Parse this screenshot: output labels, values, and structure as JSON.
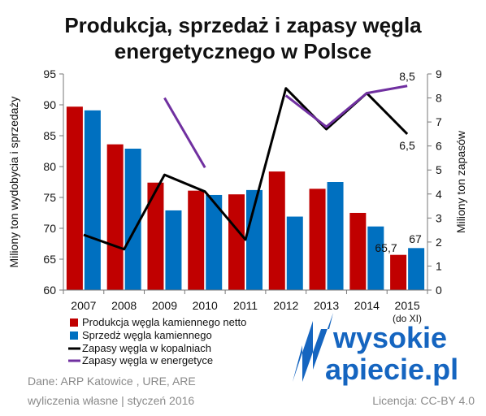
{
  "chart_data": {
    "type": "bar",
    "title": [
      "Produkcja, sprzedaż i zapasy węgla",
      "energetycznego w Polsce"
    ],
    "ylabel": "Miliony ton wydobycia i sprzedaży",
    "ylabel_right": "Miliony ton zapasów",
    "ylim": [
      60,
      95
    ],
    "ylim_right": [
      0,
      9
    ],
    "yticks": [
      60,
      65,
      70,
      75,
      80,
      85,
      90,
      95
    ],
    "yticks_right": [
      0,
      1,
      2,
      3,
      4,
      5,
      6,
      7,
      8,
      9
    ],
    "categories": [
      "2007",
      "2008",
      "2009",
      "2010",
      "2011",
      "2012",
      "2013",
      "2014",
      "2015"
    ],
    "category_note": "(do XI)",
    "grid": false,
    "legend": "bottom-left",
    "series": [
      {
        "name": "Produkcja węgla kamiennego netto",
        "type": "bar",
        "axis": "left",
        "color": "#c00000",
        "values": [
          89.7,
          83.6,
          77.4,
          76.1,
          75.5,
          79.2,
          76.4,
          72.5,
          65.7
        ]
      },
      {
        "name": "Sprzedż węgla kamiennego",
        "type": "bar",
        "axis": "left",
        "color": "#0070c0",
        "values": [
          89.1,
          82.9,
          72.9,
          75.4,
          76.2,
          71.9,
          77.5,
          70.3,
          66.8
        ]
      },
      {
        "name": "Zapasy węgla w kopalniach",
        "type": "line",
        "axis": "right",
        "color": "#000000",
        "values": [
          2.3,
          1.7,
          4.8,
          4.1,
          2.1,
          8.4,
          6.7,
          8.2,
          6.5
        ]
      },
      {
        "name": "Zapasy węgla w energetyce",
        "type": "line",
        "axis": "right",
        "color": "#7030a0",
        "values": [
          null,
          null,
          8.0,
          5.1,
          null,
          8.1,
          6.8,
          8.2,
          8.5
        ]
      }
    ],
    "annotations": [
      "65,7",
      "67",
      "6,5",
      "8,5"
    ]
  },
  "footer": {
    "source": "Dane: ARP Katowice , URE,  ARE",
    "note": "wyliczenia własne  |  styczeń 2016",
    "license": "Licencja: CC-BY 4.0",
    "logo_line1": "wysokie",
    "logo_line2": "apiecie.pl"
  }
}
